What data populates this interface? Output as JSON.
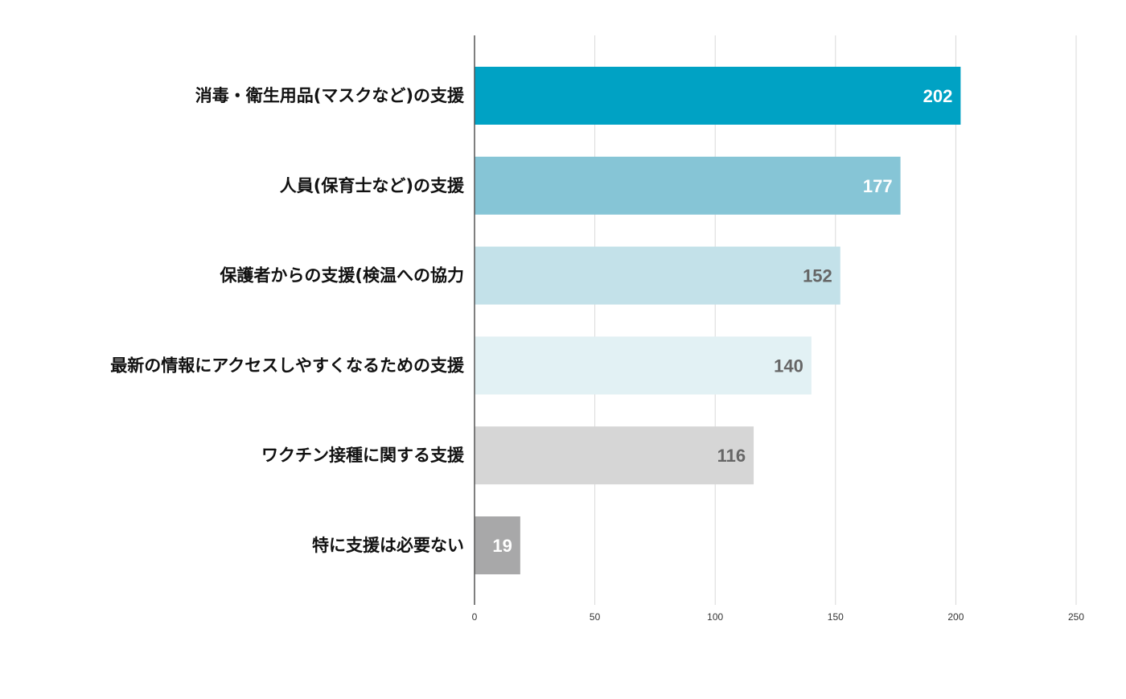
{
  "chart_data": {
    "type": "bar",
    "orientation": "horizontal",
    "categories": [
      "消毒・衛生用品(マスクなど)の支援",
      "人員(保育士など)の支援",
      "保護者からの支援(検温への協力",
      "最新の情報にアクセスしやすくなるための支援",
      "ワクチン接種に関する支援",
      "特に支援は必要ない"
    ],
    "values": [
      202,
      177,
      152,
      140,
      116,
      19
    ],
    "bar_colors": [
      "#00a2c4",
      "#86c5d6",
      "#c3e1e9",
      "#e2f1f4",
      "#d6d6d6",
      "#a8a8a9"
    ],
    "value_label_colors": [
      "#ffffff",
      "#ffffff",
      "#666666",
      "#666666",
      "#666666",
      "#ffffff"
    ],
    "xlim": [
      0,
      250
    ],
    "xticks": [
      0,
      50,
      100,
      150,
      200,
      250
    ],
    "grid": true,
    "legend": "none"
  }
}
